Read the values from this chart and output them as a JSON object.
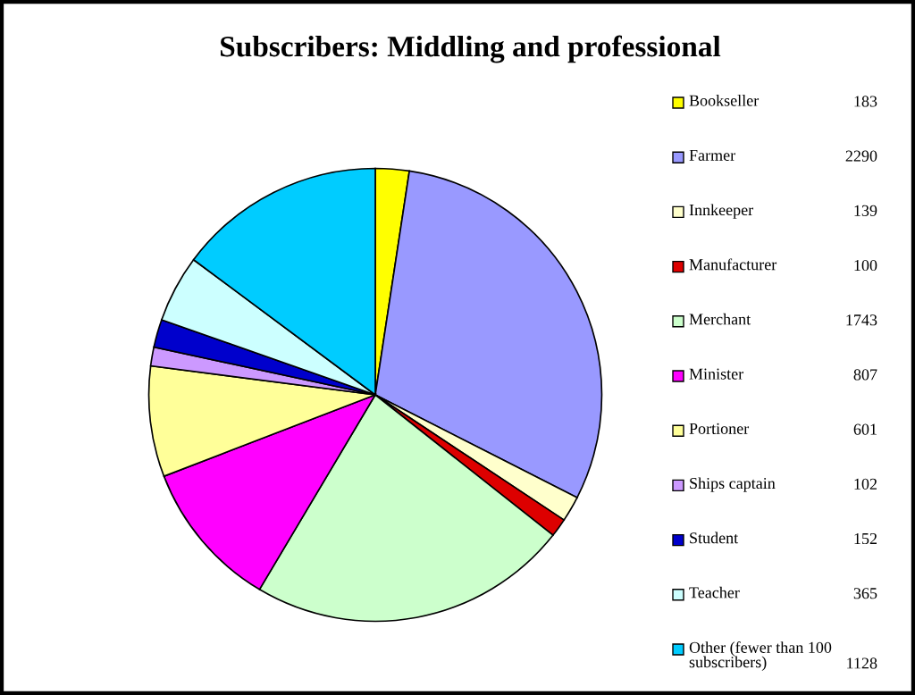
{
  "chart_data": {
    "type": "pie",
    "title": "Subscribers: Middling and professional",
    "categories": [
      "Bookseller",
      "Farmer",
      "Innkeeper",
      "Manufacturer",
      "Merchant",
      "Minister",
      "Portioner",
      "Ships captain",
      "Student",
      "Teacher",
      "Other (fewer than 100\nsubscribers)"
    ],
    "values": [
      183,
      2290,
      139,
      100,
      1743,
      807,
      601,
      102,
      152,
      365,
      1128
    ],
    "colors": [
      "#ffff00",
      "#9999ff",
      "#ffffcc",
      "#dd0000",
      "#ccffcc",
      "#ff00ff",
      "#ffff99",
      "#cc99ff",
      "#0000cc",
      "#ccffff",
      "#00ccff"
    ],
    "data_labels": true,
    "legend": "right"
  }
}
